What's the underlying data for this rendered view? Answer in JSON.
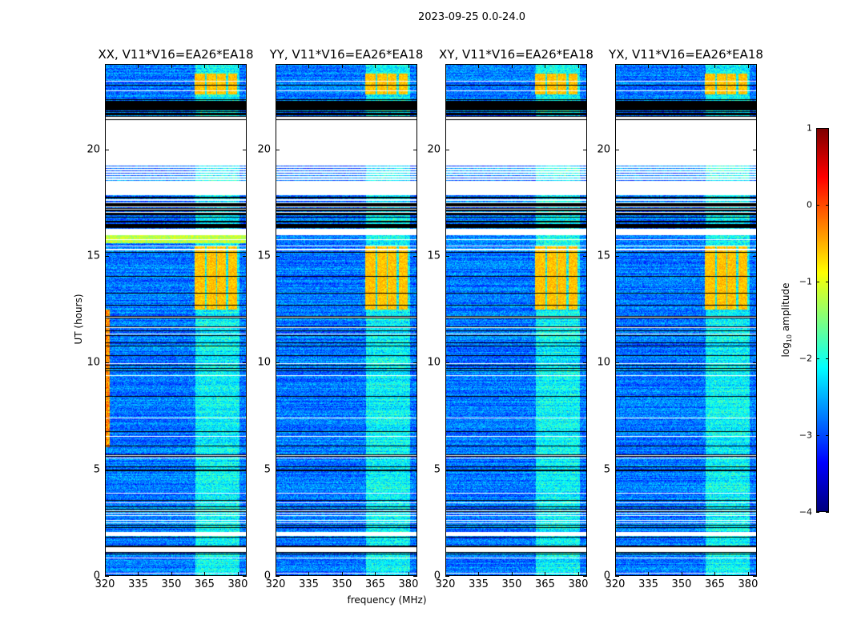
{
  "chart_data": {
    "type": "heatmap",
    "title": "2023-09-25 0.0-24.0",
    "xlabel": "frequency (MHz)",
    "ylabel": "UT (hours)",
    "xlim": [
      320,
      384
    ],
    "ylim": [
      0,
      24
    ],
    "xticks": [
      "320",
      "335",
      "350",
      "365",
      "380"
    ],
    "xtick_values": [
      320,
      335,
      350,
      365,
      380
    ],
    "yticks": [
      "0",
      "5",
      "10",
      "15",
      "20"
    ],
    "ytick_values": [
      0,
      5,
      10,
      15,
      20
    ],
    "panels": [
      {
        "title": "XX, V11*V16=EA26*EA18",
        "left_edge_rfi": true
      },
      {
        "title": "YY, V11*V16=EA26*EA18",
        "left_edge_rfi": false
      },
      {
        "title": "XY, V11*V16=EA26*EA18",
        "left_edge_rfi": false
      },
      {
        "title": "YX, V11*V16=EA26*EA18",
        "left_edge_rfi": false
      }
    ],
    "time_segments": [
      {
        "start": 0.0,
        "end": 1.1,
        "state": "data"
      },
      {
        "start": 1.1,
        "end": 1.3,
        "state": "nodata"
      },
      {
        "start": 1.3,
        "end": 1.45,
        "state": "flagged"
      },
      {
        "start": 1.45,
        "end": 1.85,
        "state": "data"
      },
      {
        "start": 1.85,
        "end": 2.05,
        "state": "nodata"
      },
      {
        "start": 2.05,
        "end": 16.0,
        "state": "data"
      },
      {
        "start": 16.0,
        "end": 16.3,
        "state": "nodata"
      },
      {
        "start": 16.3,
        "end": 17.9,
        "state": "flagged_sparse"
      },
      {
        "start": 17.9,
        "end": 18.5,
        "state": "nodata"
      },
      {
        "start": 18.5,
        "end": 19.3,
        "state": "lines"
      },
      {
        "start": 19.3,
        "end": 21.3,
        "state": "nodata"
      },
      {
        "start": 21.3,
        "end": 21.6,
        "state": "nodata_lines"
      },
      {
        "start": 21.6,
        "end": 22.4,
        "state": "flagged"
      },
      {
        "start": 22.4,
        "end": 24.0,
        "state": "data"
      }
    ],
    "bright_band_mhz": [
      361,
      381
    ],
    "high_amplitude_intervals_hours": [
      [
        12.5,
        15.5
      ],
      [
        22.6,
        23.6
      ]
    ],
    "high_amplitude_blocks_mhz": [
      [
        360.7,
        365.5
      ],
      [
        366.2,
        370.5
      ],
      [
        371,
        375
      ],
      [
        375.8,
        380
      ]
    ],
    "colorbar": {
      "label": "log10 amplitude",
      "label_main": "log",
      "label_sub": "10",
      "label_rest": " amplitude",
      "colormap": "jet",
      "range": [
        -4,
        1
      ],
      "ticks": [
        "1",
        "0",
        "−1",
        "−2",
        "−3",
        "−4"
      ],
      "tick_values": [
        1,
        0,
        -1,
        -2,
        -3,
        -4
      ]
    }
  }
}
